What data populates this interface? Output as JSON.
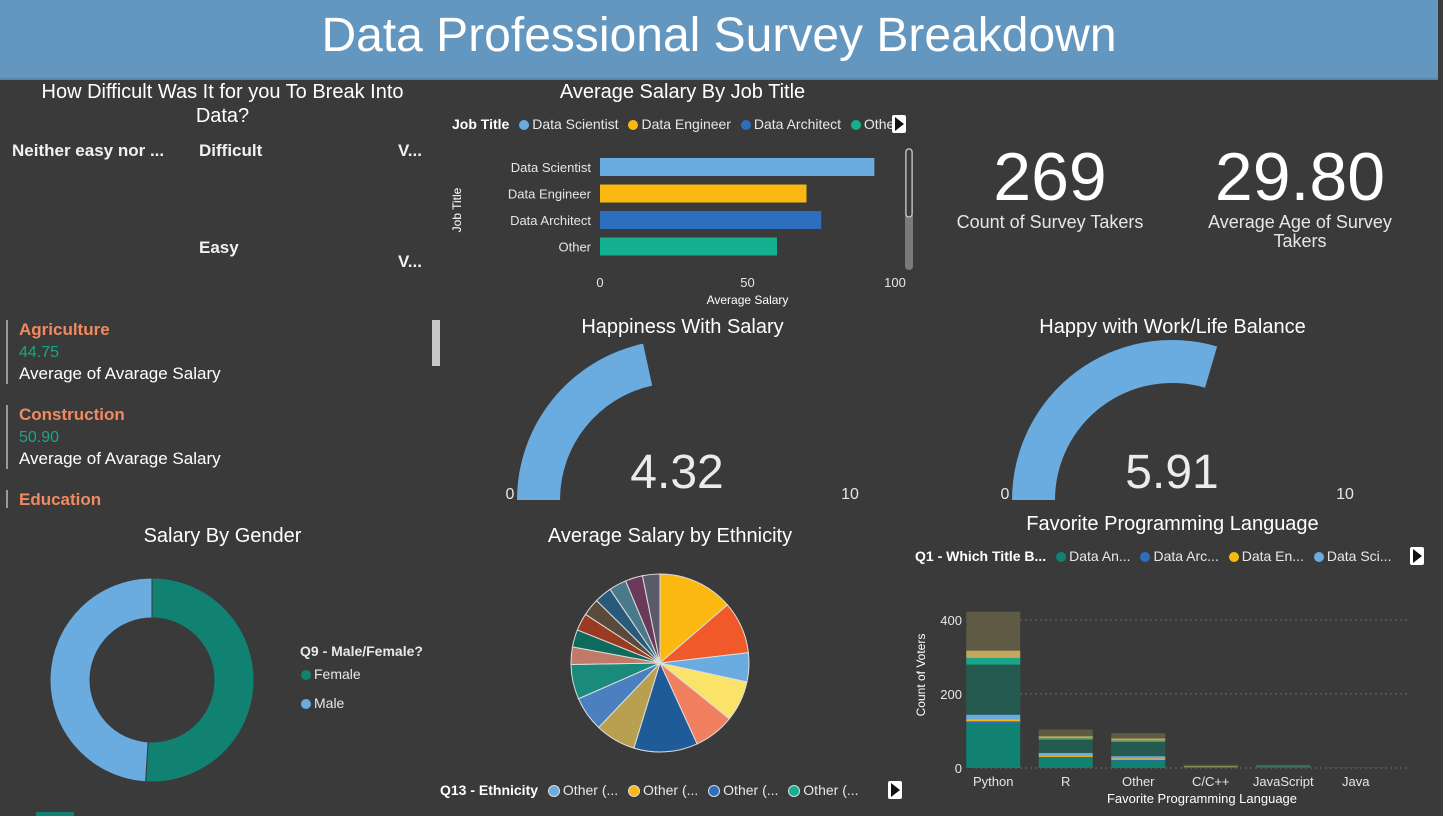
{
  "header": {
    "title": "Data Professional Survey Breakdown"
  },
  "treemap": {
    "title": "How Difficult Was It for you To Break Into Data?",
    "cells": [
      {
        "label": "Neither easy nor ...",
        "color": "#d4bfaa"
      },
      {
        "label": "Difficult",
        "color": "#8b6f66"
      },
      {
        "label": "Easy",
        "color": "#4d6680"
      },
      {
        "label": "V...",
        "color": "#8a3e2a"
      },
      {
        "label": "V...",
        "color": "#6b7680"
      }
    ]
  },
  "industry_cards": [
    {
      "name": "Agriculture",
      "value": "44.75",
      "label": "Average of Avarage Salary"
    },
    {
      "name": "Construction",
      "value": "50.90",
      "label": "Average of Avarage Salary"
    },
    {
      "name": "Education"
    }
  ],
  "job_salary": {
    "title": "Average Salary By Job Title",
    "legend_title": "Job Title",
    "legend": [
      "Data Scientist",
      "Data Engineer",
      "Data Architect",
      "Other"
    ]
  },
  "kpis": {
    "count_value": "269",
    "count_label": "Count of Survey Takers",
    "age_value": "29.80",
    "age_label_1": "Average Age of Survey",
    "age_label_2": "Takers"
  },
  "gauges": [
    {
      "title": "Happiness With Salary",
      "value": "4.32",
      "min": "0",
      "max": "10",
      "fraction": 0.432
    },
    {
      "title": "Happy with Work/Life Balance",
      "value": "5.91",
      "min": "0",
      "max": "10",
      "fraction": 0.591
    }
  ],
  "gender": {
    "title": "Salary By Gender",
    "legend_title": "Q9 - Male/Female?",
    "legend": [
      "Female",
      "Male"
    ]
  },
  "ethnicity": {
    "title": "Average Salary by Ethnicity",
    "legend_title": "Q13 - Ethnicity",
    "legend": [
      "Other (...",
      "Other (...",
      "Other (...",
      "Other (..."
    ]
  },
  "language": {
    "title": "Favorite Programming Language",
    "legend_title": "Q1 - Which Title B...",
    "legend": [
      "Data An...",
      "Data Arc...",
      "Data En...",
      "Data Sci..."
    ]
  },
  "colors": {
    "accent_blue": "#6aace0",
    "green": "#118272",
    "yellow": "#fbb810",
    "dark_blue": "#2d6ebf",
    "teal": "#12b08e"
  },
  "chart_data": [
    {
      "type": "bar",
      "orientation": "horizontal",
      "title": "Average Salary By Job Title",
      "xlabel": "Average Salary",
      "ylabel": "Job Title",
      "categories": [
        "Data Scientist",
        "Data Engineer",
        "Data Architect",
        "Other"
      ],
      "values": [
        93,
        70,
        75,
        60
      ],
      "colors": [
        "#6aace0",
        "#fbb810",
        "#2d6ebf",
        "#12b08e"
      ],
      "xticks": [
        "0",
        "50",
        "100"
      ],
      "xlim": [
        0,
        100
      ]
    },
    {
      "type": "pie",
      "title": "Salary By Gender",
      "categories": [
        "Female",
        "Male"
      ],
      "values": [
        51,
        49
      ],
      "colors": [
        "#118272",
        "#6aace0"
      ]
    },
    {
      "type": "pie",
      "title": "Average Salary by Ethnicity",
      "values": [
        13,
        9,
        5,
        7,
        7,
        11,
        7,
        6,
        6,
        3,
        3,
        3,
        3,
        3,
        3,
        3,
        3
      ],
      "colors": [
        "#fbb810",
        "#f05a2a",
        "#6aace0",
        "#fbe36a",
        "#f08060",
        "#1f5a99",
        "#b9a050",
        "#4a80c0",
        "#1a8a7a",
        "#c07a6a",
        "#0e6a5a",
        "#9a3a20",
        "#5a4a3a",
        "#2a5a7a",
        "#4a7a8a",
        "#6a3a5a",
        "#5a5a6a"
      ]
    },
    {
      "type": "bar",
      "stacked": true,
      "title": "Favorite Programming Language",
      "xlabel": "Favorite Programming Language",
      "ylabel": "Count of Voters",
      "categories": [
        "Python",
        "R",
        "Other",
        "C/C++",
        "JavaScript",
        "Java"
      ],
      "yticks": [
        "0",
        "200",
        "400"
      ],
      "ylim": [
        0,
        440
      ],
      "series": [
        {
          "name": "Data An...",
          "values": [
            120,
            28,
            20,
            3,
            2,
            1
          ],
          "color": "#118272"
        },
        {
          "name": "Data Arc...",
          "values": [
            6,
            2,
            2,
            0,
            0,
            0
          ],
          "color": "#2d6ebf"
        },
        {
          "name": "Data En...",
          "values": [
            6,
            4,
            4,
            1,
            0,
            0
          ],
          "color": "#fbb810"
        },
        {
          "name": "Data Sci...",
          "values": [
            12,
            7,
            6,
            1,
            0,
            0
          ],
          "color": "#6aace0"
        },
        {
          "name": "",
          "values": [
            135,
            35,
            38,
            2,
            2,
            1
          ],
          "color": "#245a50"
        },
        {
          "name": "",
          "values": [
            18,
            4,
            4,
            0,
            1,
            0
          ],
          "color": "#1aa586"
        },
        {
          "name": "",
          "values": [
            20,
            6,
            6,
            0,
            1,
            0
          ],
          "color": "#c4a65a"
        },
        {
          "name": "",
          "values": [
            105,
            18,
            14,
            2,
            2,
            0
          ],
          "color": "#5e5a44"
        }
      ]
    }
  ]
}
